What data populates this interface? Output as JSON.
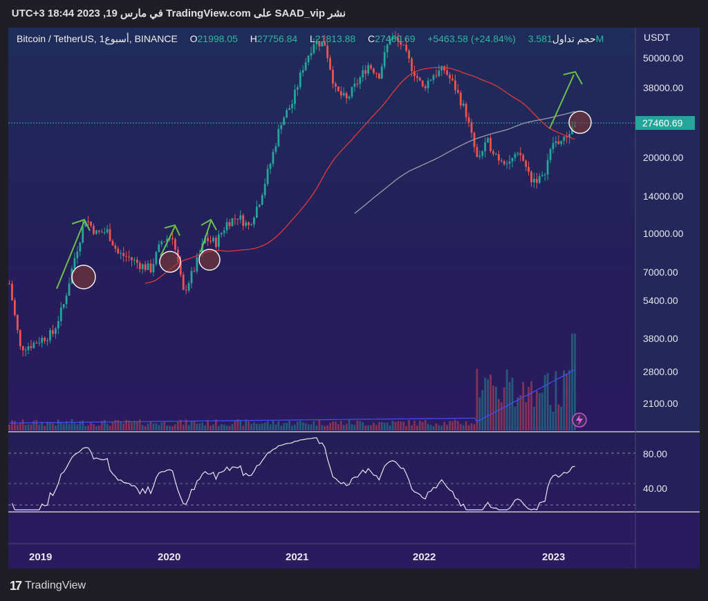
{
  "header": {
    "publish_line": "نشر SAAD_vip على TradingView.com في مارس 19, 2023 18:44 UTC+3"
  },
  "legend": {
    "symbol": "Bitcoin / TetherUS, أسبوع1, BINANCE",
    "o_label": "O",
    "o_value": "21998.05",
    "h_label": "H",
    "h_value": "27756.84",
    "l_label": "L",
    "l_value": "21813.88",
    "c_label": "C",
    "c_value": "27460.69",
    "change": "+5463.58 (+24.84%)",
    "volume_label": "حجم تداول",
    "volume_value": "3.581M"
  },
  "footer": {
    "brand": "TradingView",
    "mark": "17"
  },
  "colors": {
    "up": "#26a69a",
    "down": "#ef5350",
    "ma_red": "#e53935",
    "ma_grey": "#9e9ea8",
    "volume_ma": "#3f51ff",
    "rsi": "#e8e8f0",
    "arrow": "#6cc04a",
    "bg_grad_top": "#1f2d5a",
    "bg_grad_bottom": "#2a1a5e"
  },
  "chart_data": {
    "type": "candlestick",
    "title": "Bitcoin / TetherUS, أسبوع1, BINANCE",
    "currency_label": "USDT",
    "y_scale": "log",
    "price_ticks": [
      50000,
      38000,
      27460.69,
      20000,
      14000,
      10000,
      7000,
      5400,
      3800,
      2800,
      2100
    ],
    "price_tick_labels": [
      "50000.00",
      "38000.00",
      "27460.69",
      "20000.00",
      "14000.00",
      "10000.00",
      "7000.00",
      "5400.00",
      "3800.00",
      "2800.00",
      "2100.00"
    ],
    "current_price_label": "27460.69",
    "x_ticks": [
      "2019",
      "2020",
      "2021",
      "2022",
      "2023"
    ],
    "price_path": [
      [
        "2018-11",
        6300
      ],
      [
        "2018-12",
        3500
      ],
      [
        "2019-01",
        3600
      ],
      [
        "2019-02",
        3800
      ],
      [
        "2019-03",
        4000
      ],
      [
        "2019-04",
        5200
      ],
      [
        "2019-05",
        8000
      ],
      [
        "2019-06",
        11500
      ],
      [
        "2019-07",
        10000
      ],
      [
        "2019-08",
        10200
      ],
      [
        "2019-09",
        8300
      ],
      [
        "2019-10",
        8000
      ],
      [
        "2019-11",
        7500
      ],
      [
        "2019-12",
        7200
      ],
      [
        "2020-01",
        9300
      ],
      [
        "2020-02",
        9800
      ],
      [
        "2020-03",
        5800
      ],
      [
        "2020-04",
        7200
      ],
      [
        "2020-05",
        9500
      ],
      [
        "2020-06",
        9200
      ],
      [
        "2020-07",
        11000
      ],
      [
        "2020-08",
        11700
      ],
      [
        "2020-09",
        10700
      ],
      [
        "2020-10",
        13500
      ],
      [
        "2020-11",
        19000
      ],
      [
        "2020-12",
        28000
      ],
      [
        "2021-01",
        33000
      ],
      [
        "2021-02",
        46000
      ],
      [
        "2021-03",
        58000
      ],
      [
        "2021-04",
        57000
      ],
      [
        "2021-05",
        37000
      ],
      [
        "2021-06",
        34000
      ],
      [
        "2021-07",
        40000
      ],
      [
        "2021-08",
        47000
      ],
      [
        "2021-09",
        43000
      ],
      [
        "2021-10",
        61000
      ],
      [
        "2021-11",
        57000
      ],
      [
        "2021-12",
        46000
      ],
      [
        "2022-01",
        38000
      ],
      [
        "2022-02",
        43000
      ],
      [
        "2022-03",
        45000
      ],
      [
        "2022-04",
        38000
      ],
      [
        "2022-05",
        30000
      ],
      [
        "2022-06",
        19800
      ],
      [
        "2022-07",
        23000
      ],
      [
        "2022-08",
        20000
      ],
      [
        "2022-09",
        19400
      ],
      [
        "2022-10",
        20500
      ],
      [
        "2022-11",
        16500
      ],
      [
        "2022-12",
        16500
      ],
      [
        "2023-01",
        23000
      ],
      [
        "2023-02",
        23500
      ],
      [
        "2023-03",
        27460
      ]
    ],
    "indicator_ma_red": "moving average",
    "indicator_ma_grey": "moving average",
    "rsi_ticks": [
      "80.00",
      "40.00"
    ],
    "annotations": [
      "circles at bounce points",
      "green up-arrows"
    ]
  }
}
